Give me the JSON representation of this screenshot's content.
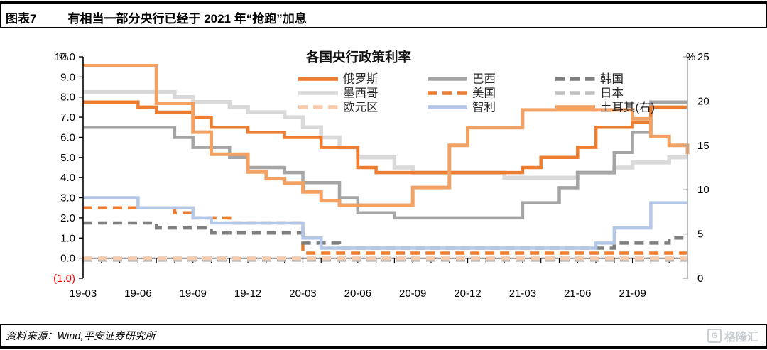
{
  "header": {
    "tag": "图表7",
    "title": "有相当一部分央行已经于 2021 年“抢跑”加息"
  },
  "footer": {
    "source": "资料来源：Wind,平安证券研究所",
    "logo_text": "格隆汇",
    "logo_icon_letter": "G"
  },
  "chart_data": {
    "type": "line",
    "subtype": "step",
    "title": "各国央行政策利率",
    "x_unit": "month",
    "x_categories": [
      "2019-03",
      "2019-04",
      "2019-05",
      "2019-06",
      "2019-07",
      "2019-08",
      "2019-09",
      "2019-10",
      "2019-11",
      "2019-12",
      "2020-01",
      "2020-02",
      "2020-03",
      "2020-04",
      "2020-05",
      "2020-06",
      "2020-07",
      "2020-08",
      "2020-09",
      "2020-10",
      "2020-11",
      "2020-12",
      "2021-01",
      "2021-02",
      "2021-03",
      "2021-04",
      "2021-05",
      "2021-06",
      "2021-07",
      "2021-08",
      "2021-09",
      "2021-10",
      "2021-11",
      "2021-12"
    ],
    "x_tick_labels": [
      "19-03",
      "19-06",
      "19-09",
      "19-12",
      "20-03",
      "20-06",
      "20-09",
      "20-12",
      "21-03",
      "21-06",
      "21-09"
    ],
    "left_axis": {
      "unit_label": "%",
      "min": -1.0,
      "max": 10.0,
      "tick_labels": [
        "10.0",
        "9.0",
        "8.0",
        "7.0",
        "6.0",
        "5.0",
        "4.0",
        "3.0",
        "2.0",
        "1.0",
        "0.0",
        "(1.0)"
      ],
      "negative_label_color": "#FF0000"
    },
    "right_axis": {
      "unit_label": "%",
      "min": 0,
      "max": 25,
      "tick_labels": [
        "25",
        "20",
        "15",
        "10",
        "5",
        "0"
      ],
      "axis_color": "#A6A6A6"
    },
    "grid": false,
    "legend_position": "top",
    "legend_columns": [
      [
        "俄罗斯",
        "墨西哥",
        "欧元区"
      ],
      [
        "巴西",
        "美国",
        "智利"
      ],
      [
        "韩国",
        "日本",
        "土耳其(右)"
      ]
    ],
    "series": [
      {
        "key": "russia",
        "name": "俄罗斯",
        "axis": "left",
        "style": "solid",
        "color": "#ED7D31",
        "width": 4.5,
        "values": [
          7.75,
          7.75,
          7.75,
          7.5,
          7.25,
          7.25,
          7.0,
          6.5,
          6.5,
          6.25,
          6.25,
          6.0,
          6.0,
          5.5,
          5.5,
          4.5,
          4.25,
          4.25,
          4.25,
          4.25,
          4.25,
          4.25,
          4.25,
          4.25,
          4.5,
          5.0,
          5.0,
          5.5,
          6.5,
          6.5,
          6.75,
          7.5,
          7.5,
          7.5
        ]
      },
      {
        "key": "mexico",
        "name": "墨西哥",
        "axis": "left",
        "style": "solid",
        "color": "#D9D9D9",
        "width": 5.5,
        "values": [
          8.25,
          8.25,
          8.25,
          8.25,
          8.25,
          8.0,
          7.75,
          7.75,
          7.5,
          7.25,
          7.25,
          7.0,
          6.5,
          6.0,
          5.5,
          5.0,
          5.0,
          4.5,
          4.25,
          4.25,
          4.25,
          4.25,
          4.25,
          4.0,
          4.0,
          4.0,
          4.0,
          4.25,
          4.25,
          4.5,
          4.75,
          4.75,
          5.0,
          5.0
        ]
      },
      {
        "key": "eurozone",
        "name": "欧元区",
        "axis": "left",
        "style": "dashed",
        "color": "#F8CBAD",
        "width": 5,
        "values": [
          0.0,
          0.0,
          0.0,
          0.0,
          0.0,
          0.0,
          0.0,
          0.0,
          0.0,
          0.0,
          0.0,
          0.0,
          0.0,
          0.0,
          0.0,
          0.0,
          0.0,
          0.0,
          0.0,
          0.0,
          0.0,
          0.0,
          0.0,
          0.0,
          0.0,
          0.0,
          0.0,
          0.0,
          0.0,
          0.0,
          0.0,
          0.0,
          0.0,
          0.0
        ]
      },
      {
        "key": "brazil",
        "name": "巴西",
        "axis": "left",
        "style": "solid",
        "color": "#A5A5A5",
        "width": 4.5,
        "values": [
          6.5,
          6.5,
          6.5,
          6.5,
          6.5,
          6.0,
          5.5,
          5.5,
          5.0,
          4.5,
          4.5,
          4.25,
          3.75,
          3.75,
          3.0,
          2.25,
          2.25,
          2.0,
          2.0,
          2.0,
          2.0,
          2.0,
          2.0,
          2.0,
          2.75,
          2.75,
          3.5,
          4.25,
          4.25,
          5.25,
          6.25,
          7.75,
          7.75,
          7.75
        ]
      },
      {
        "key": "us",
        "name": "美国",
        "axis": "left",
        "style": "dashed",
        "color": "#ED7D31",
        "width": 4.5,
        "values": [
          2.5,
          2.5,
          2.5,
          2.5,
          2.5,
          2.25,
          2.0,
          2.0,
          1.75,
          1.75,
          1.75,
          1.75,
          0.25,
          0.25,
          0.25,
          0.25,
          0.25,
          0.25,
          0.25,
          0.25,
          0.25,
          0.25,
          0.25,
          0.25,
          0.25,
          0.25,
          0.25,
          0.25,
          0.25,
          0.25,
          0.25,
          0.25,
          0.25,
          0.25
        ]
      },
      {
        "key": "chile",
        "name": "智利",
        "axis": "left",
        "style": "solid",
        "color": "#B4C7E7",
        "width": 4.5,
        "values": [
          3.0,
          3.0,
          3.0,
          2.5,
          2.5,
          2.5,
          2.0,
          1.75,
          1.75,
          1.75,
          1.75,
          1.75,
          1.0,
          0.5,
          0.5,
          0.5,
          0.5,
          0.5,
          0.5,
          0.5,
          0.5,
          0.5,
          0.5,
          0.5,
          0.5,
          0.5,
          0.5,
          0.5,
          0.75,
          1.5,
          1.5,
          2.75,
          2.75,
          2.75
        ]
      },
      {
        "key": "korea",
        "name": "韩国",
        "axis": "left",
        "style": "dashed",
        "color": "#7F7F7F",
        "width": 4.5,
        "values": [
          1.75,
          1.75,
          1.75,
          1.75,
          1.5,
          1.5,
          1.5,
          1.25,
          1.25,
          1.25,
          1.25,
          1.25,
          0.75,
          0.75,
          0.5,
          0.5,
          0.5,
          0.5,
          0.5,
          0.5,
          0.5,
          0.5,
          0.5,
          0.5,
          0.5,
          0.5,
          0.5,
          0.5,
          0.5,
          0.75,
          0.75,
          0.75,
          1.0,
          1.0
        ]
      },
      {
        "key": "japan",
        "name": "日本",
        "axis": "left",
        "style": "dashed",
        "color": "#BFBFBF",
        "width": 4.5,
        "values": [
          -0.1,
          -0.1,
          -0.1,
          -0.1,
          -0.1,
          -0.1,
          -0.1,
          -0.1,
          -0.1,
          -0.1,
          -0.1,
          -0.1,
          -0.1,
          -0.1,
          -0.1,
          -0.1,
          -0.1,
          -0.1,
          -0.1,
          -0.1,
          -0.1,
          -0.1,
          -0.1,
          -0.1,
          -0.1,
          -0.1,
          -0.1,
          -0.1,
          -0.1,
          -0.1,
          -0.1,
          -0.1,
          -0.1,
          -0.1
        ]
      },
      {
        "key": "turkey",
        "name": "土耳其(右)",
        "axis": "right",
        "style": "solid",
        "color": "#F3A263",
        "width": 5,
        "values": [
          24,
          24,
          24,
          24,
          19.75,
          19.75,
          16.5,
          14,
          14,
          12,
          11.25,
          10.75,
          9.75,
          8.75,
          8.25,
          8.25,
          8.25,
          8.25,
          10.25,
          10.25,
          15,
          17,
          17,
          17,
          19,
          19,
          19,
          19,
          19,
          19,
          18,
          16,
          15,
          14
        ]
      }
    ]
  }
}
